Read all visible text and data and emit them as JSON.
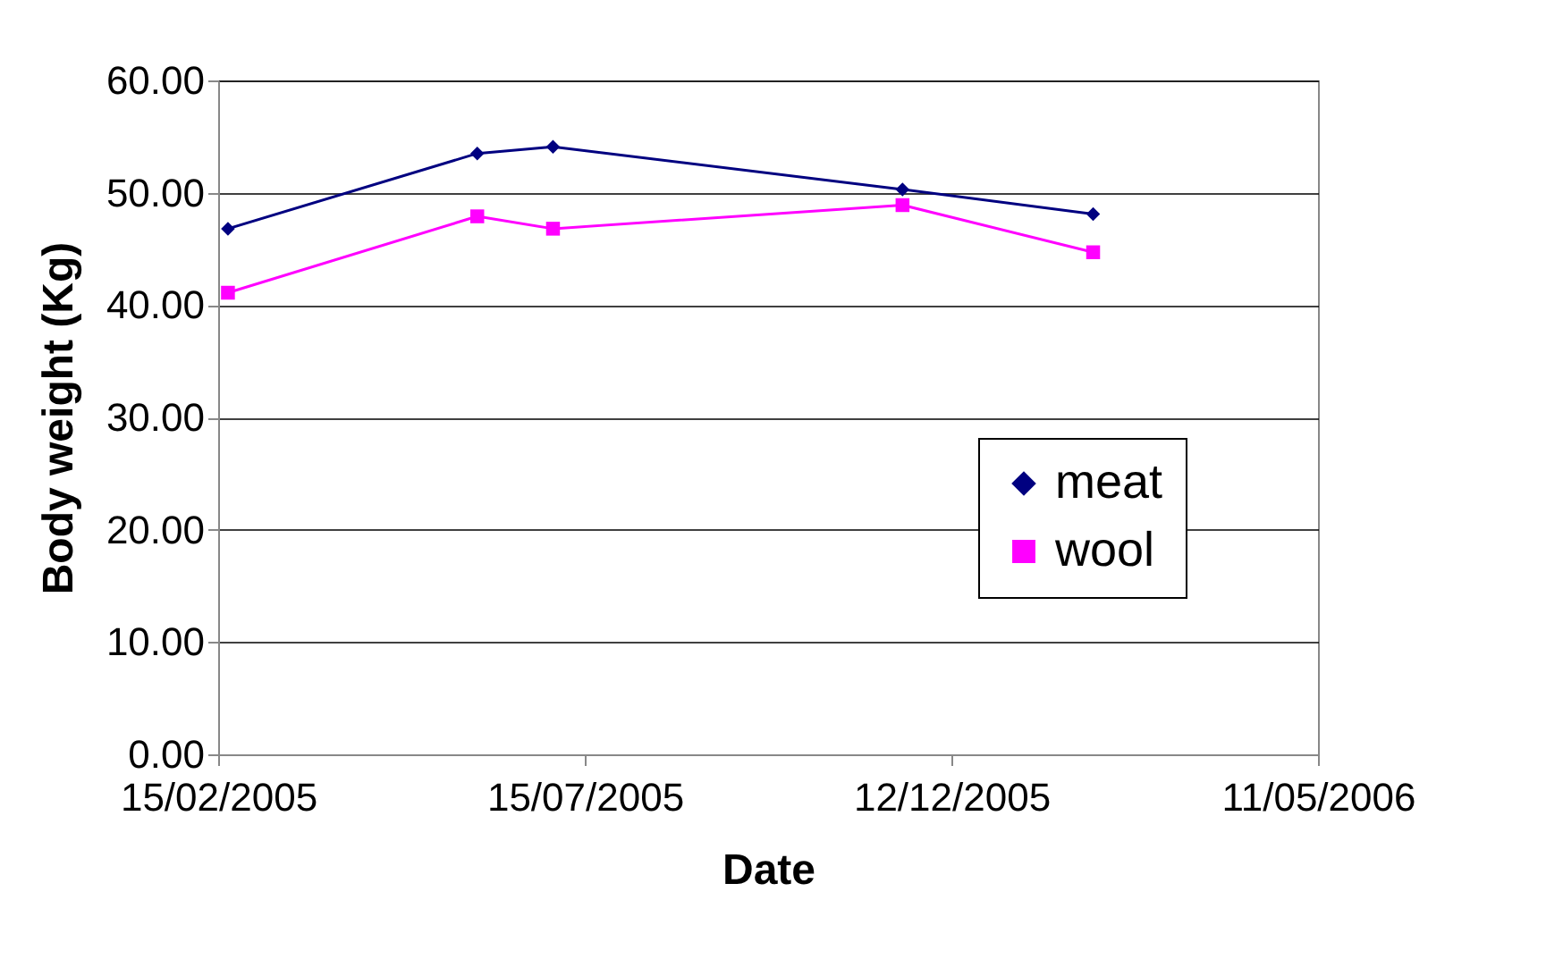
{
  "chart_data": {
    "type": "line",
    "xlabel": "Date",
    "ylabel": "Body weight (Kg)",
    "x": [
      "2005-02-19",
      "2005-06-01",
      "2005-07-02",
      "2005-11-22",
      "2006-02-08"
    ],
    "series": [
      {
        "name": "meat",
        "color": "#000080",
        "marker": "diamond",
        "values": [
          46.8,
          53.5,
          54.1,
          50.3,
          48.1
        ]
      },
      {
        "name": "wool",
        "color": "#ff00ff",
        "marker": "square",
        "values": [
          41.1,
          47.9,
          46.8,
          48.9,
          44.7
        ]
      }
    ],
    "xlim": [
      "2005-02-15",
      "2006-05-11"
    ],
    "xticks": [
      {
        "value": "2005-02-15",
        "label": "15/02/2005"
      },
      {
        "value": "2005-07-15",
        "label": "15/07/2005"
      },
      {
        "value": "2005-12-12",
        "label": "12/12/2005"
      },
      {
        "value": "2006-05-11",
        "label": "11/05/2006"
      }
    ],
    "ylim": [
      0,
      60
    ],
    "yticks": [
      {
        "value": 0,
        "label": "0.00"
      },
      {
        "value": 10,
        "label": "10.00"
      },
      {
        "value": 20,
        "label": "20.00"
      },
      {
        "value": 30,
        "label": "30.00"
      },
      {
        "value": 40,
        "label": "40.00"
      },
      {
        "value": 50,
        "label": "50.00"
      },
      {
        "value": 60,
        "label": "60.00"
      }
    ],
    "grid": "y",
    "legend": "right",
    "line_style": "solid"
  }
}
